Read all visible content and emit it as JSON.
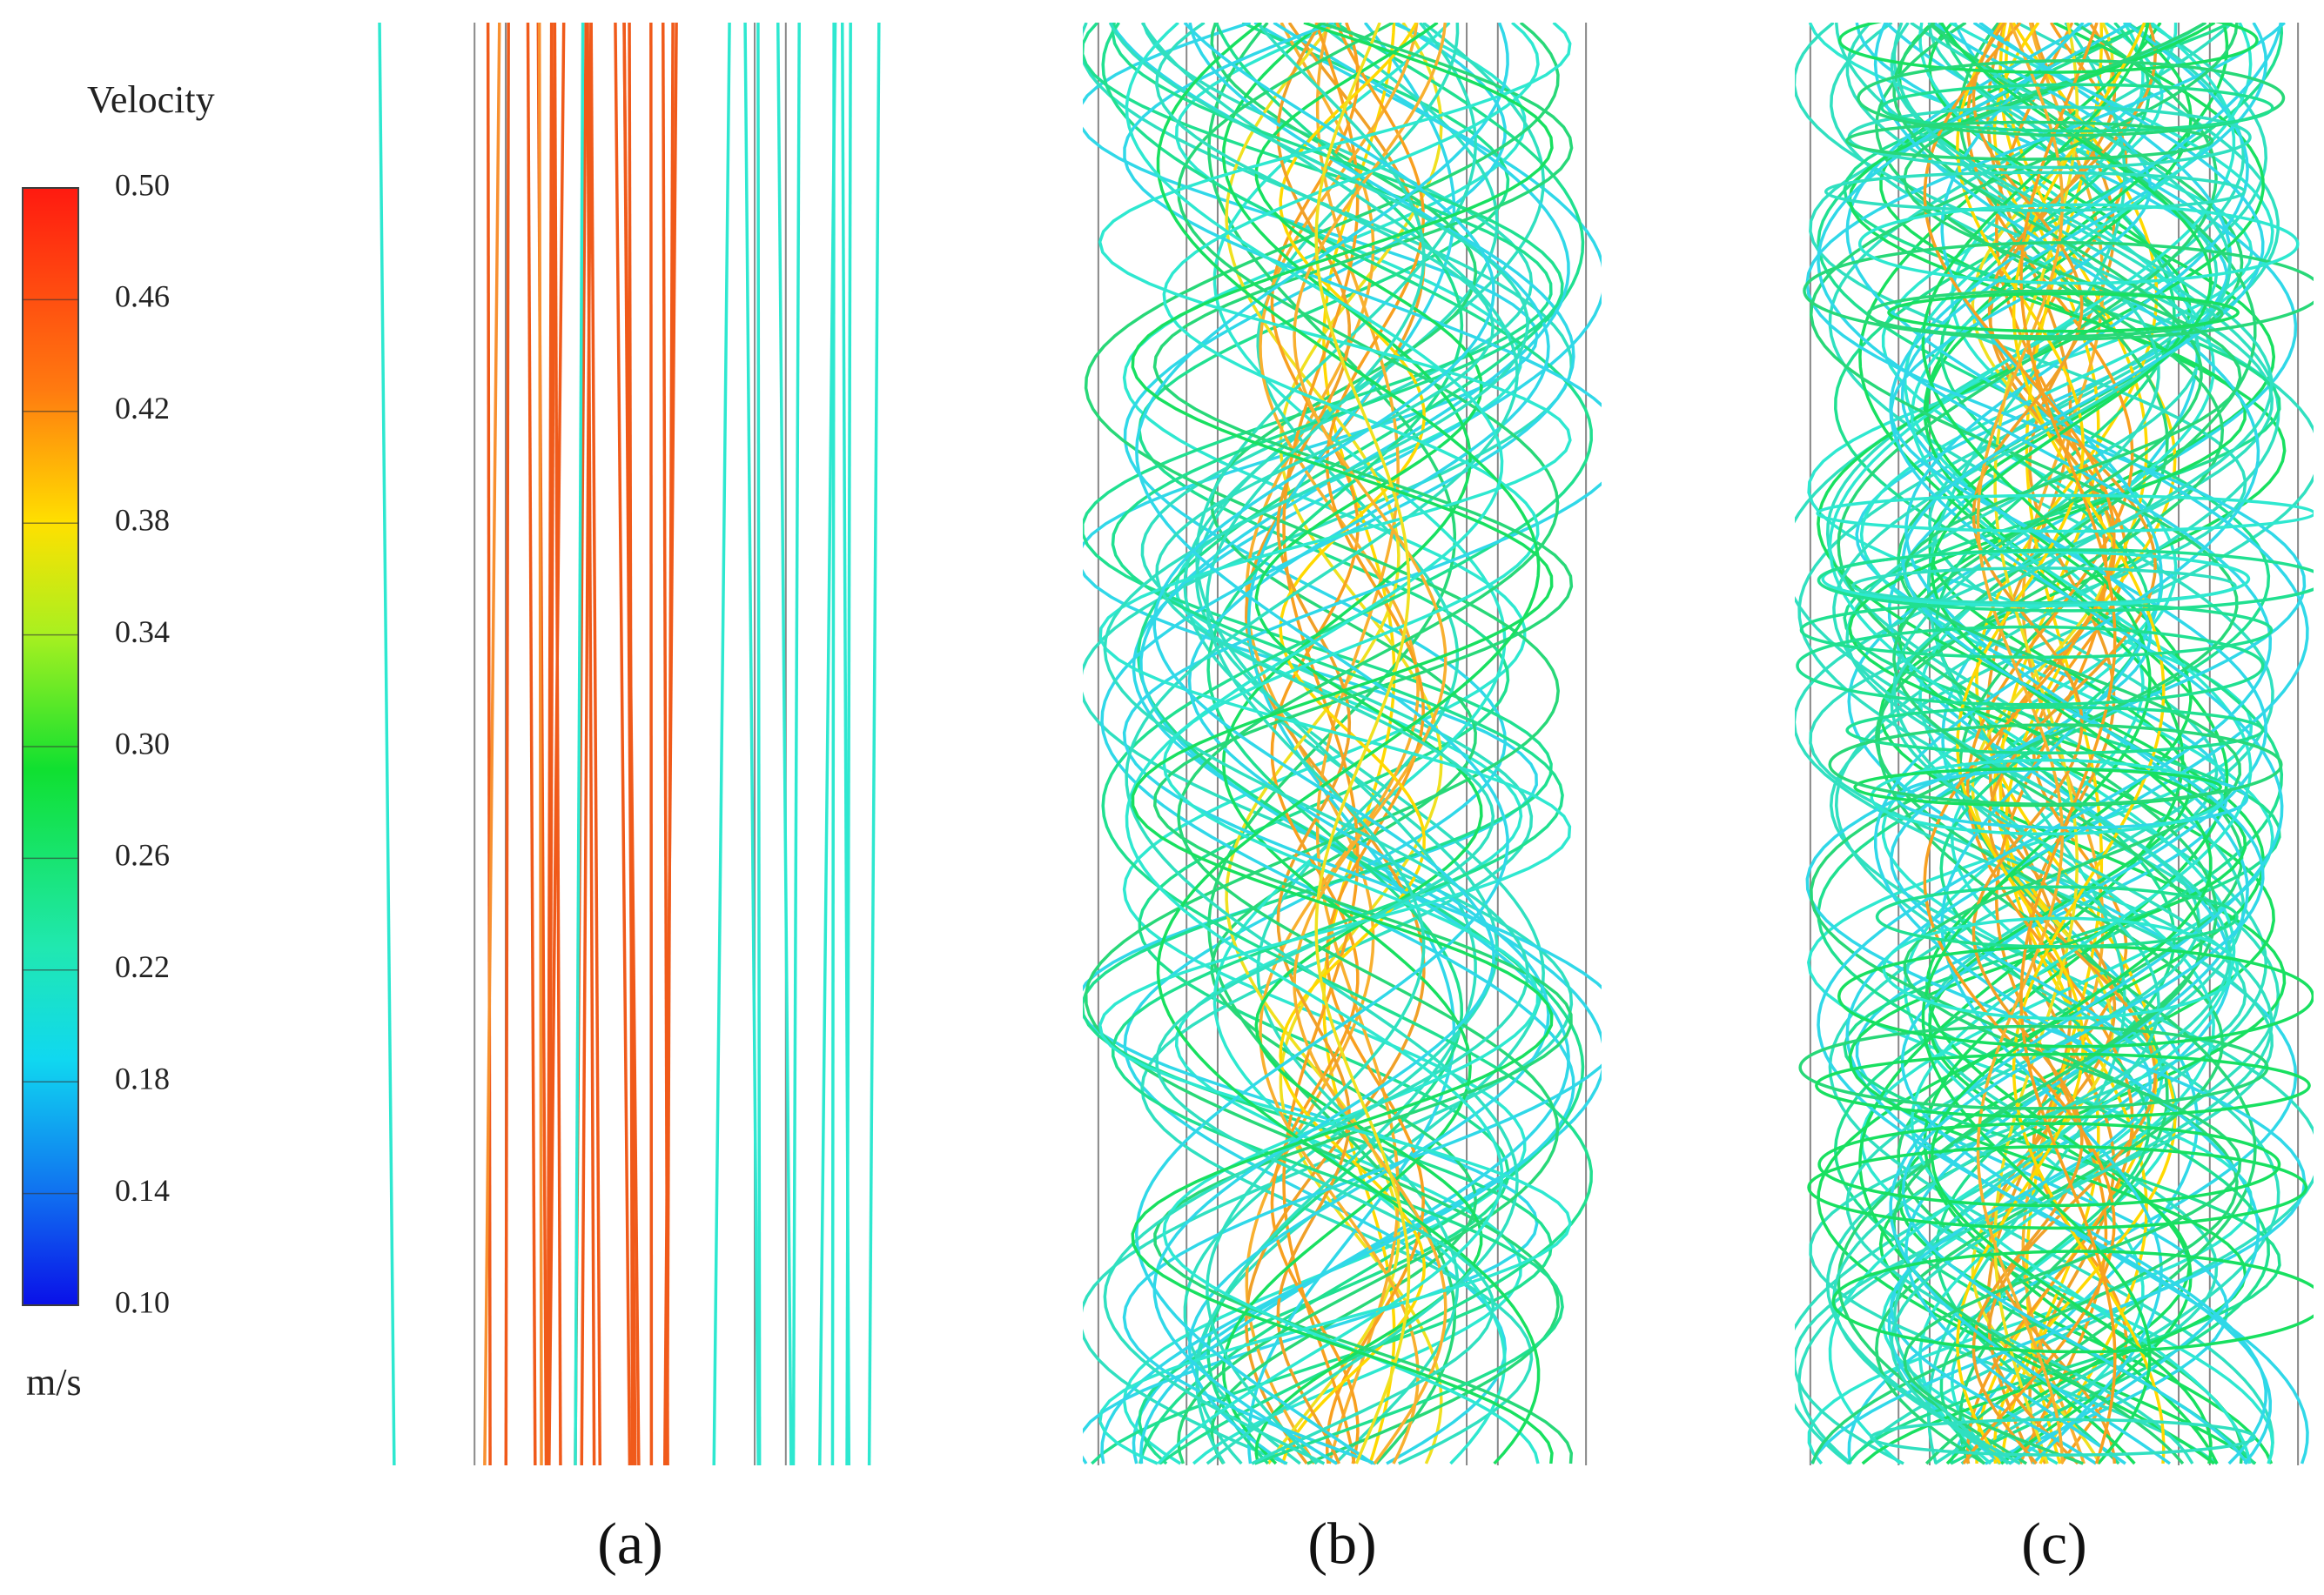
{
  "colorbar": {
    "title": "Velocity",
    "unit": "m/s",
    "range": [
      0.1,
      0.5
    ],
    "ticks": [
      {
        "value": 0.5,
        "label": "0.50"
      },
      {
        "value": 0.46,
        "label": "0.46"
      },
      {
        "value": 0.42,
        "label": "0.42"
      },
      {
        "value": 0.38,
        "label": "0.38"
      },
      {
        "value": 0.34,
        "label": "0.34"
      },
      {
        "value": 0.3,
        "label": "0.30"
      },
      {
        "value": 0.26,
        "label": "0.26"
      },
      {
        "value": 0.22,
        "label": "0.22"
      },
      {
        "value": 0.18,
        "label": "0.18"
      },
      {
        "value": 0.14,
        "label": "0.14"
      },
      {
        "value": 0.1,
        "label": "0.10"
      }
    ]
  },
  "panels": [
    {
      "label": "(a)"
    },
    {
      "label": "(b)"
    },
    {
      "label": "(c)"
    }
  ]
}
